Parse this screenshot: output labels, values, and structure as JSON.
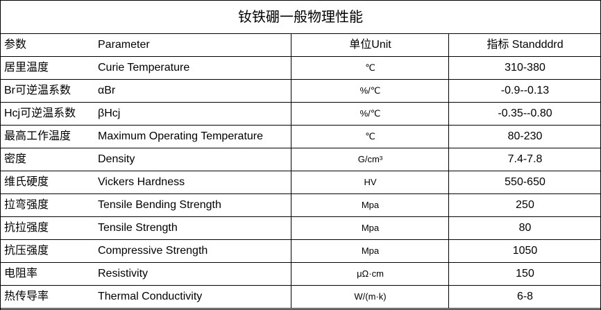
{
  "title": "钕铁硼一般物理性能",
  "table": {
    "header": [
      "参数",
      "Parameter",
      "单位Unit",
      "指标 Standddrd"
    ],
    "rows": [
      [
        "居里温度",
        "Curie Temperature",
        "℃",
        "310-380"
      ],
      [
        "Br可逆温系数",
        "αBr",
        "%/℃",
        "-0.9--0.13"
      ],
      [
        "Hcj可逆温系数",
        "βHcj",
        "%/℃",
        "-0.35--0.80"
      ],
      [
        "最高工作温度",
        "Maximum Operating Temperature",
        "℃",
        "80-230"
      ],
      [
        "密度",
        "Density",
        "G/cm³",
        "7.4-7.8"
      ],
      [
        "维氏硬度",
        "Vickers Hardness",
        "HV",
        "550-650"
      ],
      [
        "拉弯强度",
        "Tensile Bending Strength",
        "Mpa",
        "250"
      ],
      [
        "抗拉强度",
        "Tensile Strength",
        "Mpa",
        "80"
      ],
      [
        "抗压强度",
        "Compressive Strength",
        "Mpa",
        "1050"
      ],
      [
        "电阻率",
        "Resistivity",
        "μΩ·cm",
        "150"
      ],
      [
        "热传导率",
        "Thermal Conductivity",
        "W/(m·k)",
        "6-8"
      ]
    ]
  }
}
